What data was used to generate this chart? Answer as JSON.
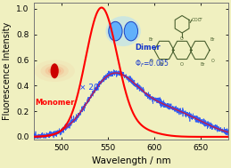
{
  "background_color": "#f0f0c0",
  "xlim": [
    470,
    680
  ],
  "ylim": [
    -0.02,
    1.05
  ],
  "xlabel": "Wavelength / nm",
  "ylabel": "Fluorescence Intensity",
  "xlabel_fontsize": 7.5,
  "ylabel_fontsize": 7.0,
  "tick_fontsize": 6.5,
  "monomer_color": "#ff0000",
  "dimer_color": "#1144ff",
  "dimer_smooth_color": "#cc2200",
  "x20_label": "× 20",
  "monomer_label": "Monomer",
  "dimer_label": "Dimer",
  "xticks": [
    500,
    550,
    600,
    650
  ],
  "struct_color": "#4a6030"
}
